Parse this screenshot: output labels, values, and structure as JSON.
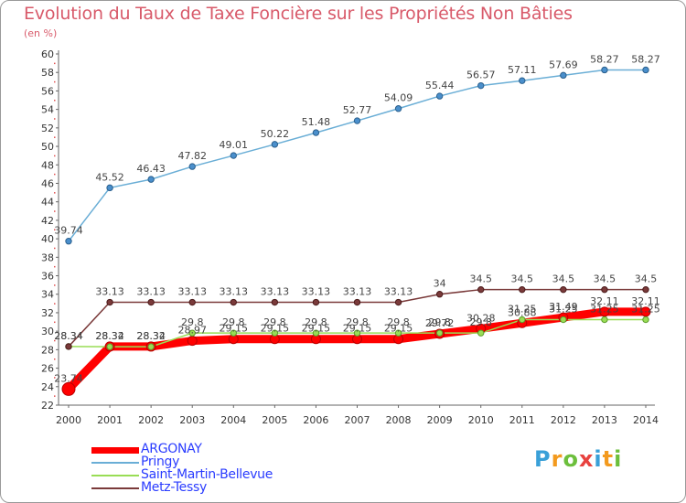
{
  "chart_data": {
    "type": "line",
    "title": "Evolution du Taux de Taxe Foncière sur les Propriétés Non Bâties",
    "ylabel": "(en %)",
    "xlabel": "",
    "ylim": [
      22,
      60
    ],
    "yticks": [
      22,
      24,
      26,
      28,
      30,
      32,
      34,
      36,
      38,
      40,
      42,
      44,
      46,
      48,
      50,
      52,
      54,
      56,
      58,
      60
    ],
    "x": [
      2000,
      2001,
      2002,
      2003,
      2004,
      2005,
      2006,
      2007,
      2008,
      2009,
      2010,
      2011,
      2012,
      2013,
      2014
    ],
    "series": [
      {
        "name": "ARGONAY",
        "color": "#ff0000",
        "values": [
          23.74,
          28.34,
          28.34,
          28.97,
          29.15,
          29.15,
          29.15,
          29.15,
          29.15,
          29.72,
          30.28,
          30.88,
          31.49,
          32.11,
          32.11
        ],
        "labels": [
          "23.74",
          "28.34",
          "28.34",
          "28.97",
          "29.15",
          "29.15",
          "29.15",
          "29.15",
          "29.15",
          "29.72",
          "30.28",
          "30.88",
          "31.49",
          "32.11",
          "32.11"
        ]
      },
      {
        "name": "Pringy",
        "color": "#6aaed6",
        "values": [
          39.74,
          45.52,
          46.43,
          47.82,
          49.01,
          50.22,
          51.48,
          52.77,
          54.09,
          55.44,
          56.57,
          57.11,
          57.69,
          58.27,
          58.27
        ],
        "labels": [
          "39.74",
          "45.52",
          "46.43",
          "47.82",
          "49.01",
          "50.22",
          "51.48",
          "52.77",
          "54.09",
          "55.44",
          "56.57",
          "57.11",
          "57.69",
          "58.27",
          "58.27"
        ]
      },
      {
        "name": "Saint-Martin-Bellevue",
        "color": "#99dd55",
        "values": [
          28.34,
          28.32,
          28.32,
          29.8,
          29.8,
          29.8,
          29.8,
          29.8,
          29.8,
          29.8,
          29.8,
          31.25,
          31.25,
          31.25,
          31.25
        ],
        "labels": [
          "28.34",
          "28.32",
          "28.32",
          "29.8",
          "29.8",
          "29.8",
          "29.8",
          "29.8",
          "29.8",
          "29.8",
          "29.8",
          "31.25",
          "31.25",
          "31.25",
          "31.25"
        ]
      },
      {
        "name": "Metz-Tessy",
        "color": "#7a3a3a",
        "values": [
          28.34,
          33.13,
          33.13,
          33.13,
          33.13,
          33.13,
          33.13,
          33.13,
          33.13,
          34,
          34.5,
          34.5,
          34.5,
          34.5,
          34.5
        ],
        "labels": [
          "28.34",
          "33.13",
          "33.13",
          "33.13",
          "33.13",
          "33.13",
          "33.13",
          "33.13",
          "33.13",
          "34",
          "34.5",
          "34.5",
          "34.5",
          "34.5",
          "34.5"
        ]
      }
    ],
    "grid": false,
    "legend": "bottom-left"
  },
  "logo": {
    "letters": [
      "P",
      "r",
      "o",
      "x",
      "i",
      "t",
      "i"
    ],
    "colors": [
      "#3aa0d8",
      "#f39a1e",
      "#6cbf3c",
      "#e8423f",
      "#3aa0d8",
      "#f39a1e",
      "#6cbf3c"
    ]
  }
}
